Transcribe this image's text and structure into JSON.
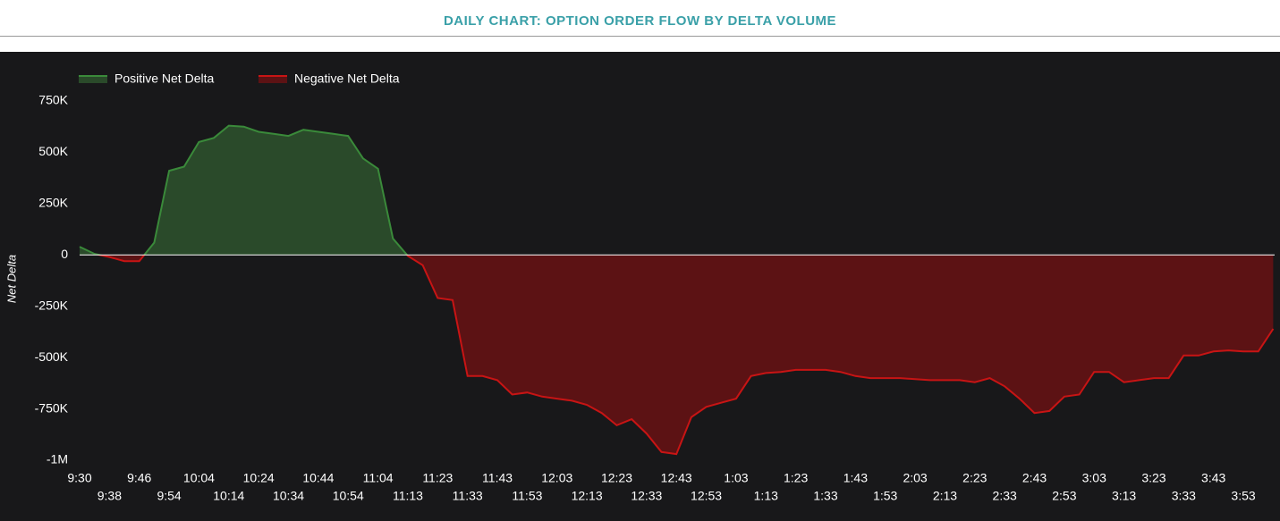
{
  "chart_data": {
    "type": "area",
    "title": "DAILY CHART: OPTION ORDER FLOW BY DELTA VOLUME",
    "y_label": "Net Delta",
    "legend": [
      {
        "name": "Positive Net Delta",
        "color": "#3a8a3a",
        "fill": "#2a4a2a"
      },
      {
        "name": "Negative Net Delta",
        "color": "#c81414",
        "fill": "#5c1214"
      }
    ],
    "categories": [
      "9:30",
      null,
      "9:38",
      null,
      "9:46",
      null,
      "9:54",
      null,
      "10:04",
      null,
      "10:14",
      null,
      "10:24",
      null,
      "10:34",
      null,
      "10:44",
      null,
      "10:54",
      null,
      "11:04",
      null,
      "11:13",
      null,
      "11:23",
      null,
      "11:33",
      null,
      "11:43",
      null,
      "11:53",
      null,
      "12:03",
      null,
      "12:13",
      null,
      "12:23",
      null,
      "12:33",
      null,
      "12:43",
      null,
      "12:53",
      null,
      "1:03",
      null,
      "1:13",
      null,
      "1:23",
      null,
      "1:33",
      null,
      "1:43",
      null,
      "1:53",
      null,
      "2:03",
      null,
      "2:13",
      null,
      "2:23",
      null,
      "2:33",
      null,
      "2:43",
      null,
      "2:53",
      null,
      "3:03",
      null,
      "3:13",
      null,
      "3:23",
      null,
      "3:33",
      null,
      "3:43",
      null,
      "3:53",
      null,
      null
    ],
    "values": [
      40000,
      5000,
      -10000,
      -30000,
      -30000,
      60000,
      410000,
      430000,
      550000,
      570000,
      630000,
      625000,
      600000,
      590000,
      580000,
      610000,
      600000,
      590000,
      580000,
      470000,
      420000,
      80000,
      -5000,
      -50000,
      -210000,
      -220000,
      -590000,
      -590000,
      -610000,
      -680000,
      -670000,
      -690000,
      -700000,
      -710000,
      -730000,
      -770000,
      -830000,
      -800000,
      -870000,
      -960000,
      -970000,
      -790000,
      -740000,
      -720000,
      -700000,
      -590000,
      -575000,
      -570000,
      -560000,
      -560000,
      -560000,
      -570000,
      -590000,
      -600000,
      -600000,
      -600000,
      -605000,
      -610000,
      -610000,
      -610000,
      -620000,
      -600000,
      -640000,
      -700000,
      -770000,
      -760000,
      -690000,
      -680000,
      -570000,
      -570000,
      -620000,
      -610000,
      -600000,
      -600000,
      -490000,
      -490000,
      -470000,
      -465000,
      -470000,
      -470000,
      -360000
    ],
    "ylim": [
      -1000000,
      750000
    ],
    "yticks": [
      {
        "value": 750000,
        "label": "750K"
      },
      {
        "value": 500000,
        "label": "500K"
      },
      {
        "value": 250000,
        "label": "250K"
      },
      0,
      {
        "value": -250000,
        "label": "-250K"
      },
      {
        "value": -500000,
        "label": "-500K"
      },
      {
        "value": -750000,
        "label": "-750K"
      },
      {
        "value": -1000000,
        "label": "-1M"
      }
    ],
    "zero_line_color": "#ffffff",
    "background": "#18181a"
  }
}
